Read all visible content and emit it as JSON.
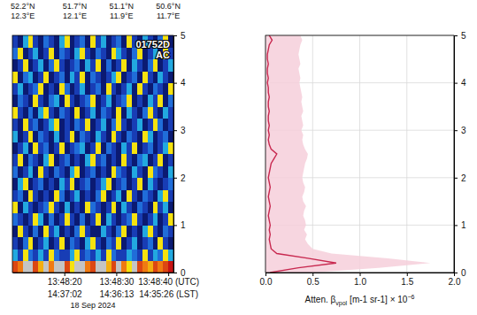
{
  "chart_data": [
    {
      "type": "heatmap",
      "date": "18 Sep 2024",
      "annotations": [
        "01752D",
        "AC"
      ],
      "top_ticks": [
        {
          "value": "13:48:12",
          "label": "52.2°N",
          "label_lon": "12.3°E"
        },
        {
          "value": "13:48:22",
          "label": "51.7°N",
          "label_lon": "12.1°E"
        },
        {
          "value": "13:48:31",
          "label": "51.1°N",
          "label_lon": "11.9°E"
        },
        {
          "value": "13:48:40",
          "label": "50.6°N",
          "label_lon": "11.7°E"
        }
      ],
      "xlim": [
        "13:48:10",
        "13:48:41"
      ],
      "xticks": [
        {
          "value": "13:48:20",
          "label": "13:48:20",
          "label_lst": "14:37:02"
        },
        {
          "value": "13:48:30",
          "label": "13:48:30",
          "label_lst": "14:36:13"
        },
        {
          "value": "13:48:40",
          "label": "13:48:40 (UTC)",
          "label_lst": "14:35:26 (LST)"
        }
      ],
      "ylim": [
        0,
        5
      ],
      "yticks": [
        0,
        1,
        2,
        3,
        4,
        5
      ],
      "x_edges": [
        "13:48:10",
        "13:48:11",
        "13:48:12",
        "13:48:13",
        "13:48:14",
        "13:48:15",
        "13:48:16",
        "13:48:17",
        "13:48:18",
        "13:48:19",
        "13:48:20",
        "13:48:21",
        "13:48:22",
        "13:48:23",
        "13:48:24",
        "13:48:25",
        "13:48:26",
        "13:48:27",
        "13:48:28",
        "13:48:29",
        "13:48:30",
        "13:48:31",
        "13:48:32",
        "13:48:33",
        "13:48:34",
        "13:48:35",
        "13:48:36",
        "13:48:37",
        "13:48:38",
        "13:48:39",
        "13:48:40",
        "13:48:41"
      ],
      "y_edges": [
        0,
        0.25,
        0.5,
        0.75,
        1,
        1.25,
        1.5,
        1.75,
        2,
        2.25,
        2.5,
        2.75,
        3,
        3.25,
        3.5,
        3.75,
        4,
        4.25,
        4.5,
        4.75,
        5
      ],
      "color_range": [
        0,
        1
      ],
      "cells": [
        [
          0.9,
          0.8,
          null,
          null,
          0.9,
          0.7,
          null,
          0.8,
          null,
          null,
          0.9,
          0.6,
          null,
          null,
          0.8,
          0.9,
          null,
          null,
          0.7,
          0.9,
          null,
          0.8,
          0.6,
          null,
          0.9,
          0.8,
          0.7,
          0.9,
          0.8,
          0.9,
          1.0
        ],
        [
          0.3,
          0.1,
          0.6,
          0.2,
          0.1,
          0.3,
          0.1,
          0.6,
          0.2,
          0.1,
          0.1,
          0.3,
          0.6,
          0.1,
          0.2,
          0.1,
          0.3,
          0.1,
          0.6,
          0.2,
          0.1,
          0.1,
          0.3,
          0.2,
          0.1,
          0.6,
          0.1,
          0.3,
          0.2,
          0.6,
          0.3
        ],
        [
          0.1,
          0.0,
          0.2,
          0.6,
          0.0,
          0.1,
          0.3,
          0.0,
          0.1,
          0.6,
          0.0,
          0.2,
          0.1,
          0.0,
          0.3,
          0.6,
          0.1,
          0.0,
          0.2,
          0.1,
          0.6,
          0.0,
          0.1,
          0.3,
          0.0,
          0.1,
          0.2,
          0.0,
          0.6,
          0.1,
          0.0
        ],
        [
          0.0,
          0.6,
          0.1,
          0.0,
          0.2,
          0.0,
          0.6,
          0.1,
          0.3,
          0.0,
          0.1,
          0.0,
          0.2,
          0.6,
          0.1,
          0.0,
          0.0,
          0.3,
          0.1,
          0.0,
          0.2,
          0.6,
          0.0,
          0.1,
          0.0,
          0.3,
          0.6,
          0.1,
          0.0,
          0.2,
          0.1
        ],
        [
          0.2,
          0.1,
          0.0,
          0.1,
          0.6,
          0.3,
          0.0,
          0.2,
          0.0,
          0.1,
          0.6,
          0.1,
          0.0,
          0.2,
          0.0,
          0.1,
          0.6,
          0.0,
          0.3,
          0.1,
          0.0,
          0.1,
          0.2,
          0.6,
          0.1,
          0.0,
          0.1,
          0.3,
          0.0,
          0.1,
          0.6
        ],
        [
          0.6,
          0.0,
          0.3,
          0.1,
          0.0,
          0.1,
          0.2,
          0.6,
          0.1,
          0.0,
          0.3,
          0.0,
          0.1,
          0.0,
          0.6,
          0.2,
          0.1,
          0.0,
          0.1,
          0.6,
          0.0,
          0.3,
          0.1,
          0.0,
          0.2,
          0.1,
          0.0,
          0.6,
          0.1,
          0.3,
          0.0
        ],
        [
          0.1,
          0.2,
          0.0,
          0.6,
          0.1,
          0.0,
          0.1,
          0.0,
          0.6,
          0.2,
          0.0,
          0.1,
          0.3,
          0.0,
          0.1,
          0.0,
          0.2,
          0.6,
          0.0,
          0.1,
          0.3,
          0.0,
          0.6,
          0.1,
          0.0,
          0.2,
          0.1,
          0.0,
          0.3,
          0.6,
          0.1
        ],
        [
          0.0,
          0.3,
          0.6,
          0.0,
          0.1,
          0.2,
          0.0,
          0.1,
          0.0,
          0.3,
          0.1,
          0.6,
          0.0,
          0.1,
          0.2,
          0.0,
          0.1,
          0.3,
          0.6,
          0.0,
          0.1,
          0.2,
          0.0,
          0.1,
          0.6,
          0.0,
          0.3,
          0.1,
          0.0,
          0.1,
          0.2
        ],
        [
          0.2,
          0.0,
          0.1,
          0.3,
          0.0,
          0.6,
          0.1,
          0.0,
          0.2,
          0.1,
          0.0,
          0.3,
          0.6,
          0.0,
          0.1,
          0.2,
          0.0,
          0.1,
          0.0,
          0.6,
          0.2,
          0.1,
          0.0,
          0.3,
          0.1,
          0.0,
          0.6,
          0.2,
          0.1,
          0.0,
          0.3
        ],
        [
          0.1,
          0.6,
          0.0,
          0.2,
          0.1,
          0.0,
          0.3,
          0.6,
          0.0,
          0.1,
          0.2,
          0.0,
          0.1,
          0.0,
          0.3,
          0.6,
          0.1,
          0.2,
          0.0,
          0.1,
          0.0,
          0.6,
          0.1,
          0.0,
          0.2,
          0.3,
          0.0,
          0.1,
          0.6,
          0.0,
          0.1
        ],
        [
          0.0,
          0.1,
          0.3,
          0.0,
          0.6,
          0.1,
          0.2,
          0.0,
          0.1,
          0.6,
          0.0,
          0.1,
          0.2,
          0.3,
          0.0,
          0.1,
          0.6,
          0.0,
          0.2,
          0.1,
          0.0,
          0.3,
          0.1,
          0.6,
          0.0,
          0.1,
          0.2,
          0.0,
          0.1,
          0.3,
          0.6
        ],
        [
          0.3,
          0.0,
          0.1,
          0.6,
          0.0,
          0.2,
          0.1,
          0.0,
          0.3,
          0.0,
          0.1,
          0.6,
          0.0,
          0.2,
          0.1,
          0.0,
          0.3,
          0.1,
          0.0,
          0.6,
          0.1,
          0.0,
          0.2,
          0.1,
          0.0,
          0.6,
          0.3,
          0.0,
          0.1,
          0.2,
          0.0
        ],
        [
          0.1,
          0.0,
          0.6,
          0.1,
          0.2,
          0.0,
          0.1,
          0.3,
          0.6,
          0.0,
          0.1,
          0.0,
          0.2,
          0.1,
          0.6,
          0.0,
          0.1,
          0.3,
          0.0,
          0.2,
          0.6,
          0.1,
          0.0,
          0.1,
          0.3,
          0.0,
          0.1,
          0.6,
          0.2,
          0.0,
          0.1
        ],
        [
          0.6,
          0.1,
          0.0,
          0.2,
          0.0,
          0.3,
          0.6,
          0.1,
          0.0,
          0.2,
          0.1,
          0.0,
          0.6,
          0.0,
          0.1,
          0.3,
          0.0,
          0.2,
          0.1,
          0.0,
          0.6,
          0.0,
          0.3,
          0.1,
          0.0,
          0.2,
          0.6,
          0.1,
          0.0,
          0.3,
          0.1
        ],
        [
          0.0,
          0.2,
          0.1,
          0.0,
          0.6,
          0.1,
          0.0,
          0.2,
          0.3,
          0.0,
          0.6,
          0.1,
          0.0,
          0.1,
          0.2,
          0.6,
          0.0,
          0.1,
          0.3,
          0.0,
          0.1,
          0.2,
          0.6,
          0.0,
          0.1,
          0.0,
          0.3,
          0.1,
          0.6,
          0.0,
          0.2
        ],
        [
          0.1,
          0.3,
          0.0,
          0.1,
          0.2,
          0.6,
          0.0,
          0.1,
          0.0,
          0.6,
          0.2,
          0.0,
          0.1,
          0.3,
          0.0,
          0.1,
          0.2,
          0.0,
          0.6,
          0.1,
          0.0,
          0.1,
          0.3,
          0.0,
          0.6,
          0.1,
          0.0,
          0.2,
          0.1,
          0.0,
          0.6
        ],
        [
          0.6,
          0.0,
          0.2,
          0.3,
          0.0,
          0.1,
          0.6,
          0.0,
          0.1,
          0.2,
          0.0,
          0.3,
          0.1,
          0.6,
          0.0,
          0.2,
          0.1,
          0.0,
          0.1,
          0.3,
          0.6,
          0.0,
          0.1,
          0.2,
          0.0,
          0.6,
          0.1,
          0.0,
          0.3,
          0.1,
          0.0
        ],
        [
          0.0,
          0.1,
          0.6,
          0.0,
          0.1,
          0.3,
          0.0,
          0.2,
          0.6,
          0.1,
          0.0,
          0.1,
          0.2,
          0.0,
          0.3,
          0.1,
          0.6,
          0.0,
          0.2,
          0.0,
          0.1,
          0.6,
          0.0,
          0.3,
          0.1,
          0.0,
          0.2,
          0.6,
          0.0,
          0.1,
          0.3
        ],
        [
          0.2,
          0.6,
          0.0,
          0.1,
          0.3,
          0.0,
          0.1,
          0.6,
          0.0,
          0.2,
          0.1,
          0.0,
          0.3,
          0.6,
          0.1,
          0.0,
          0.2,
          0.1,
          0.0,
          0.6,
          0.3,
          0.1,
          0.0,
          0.2,
          0.6,
          0.0,
          0.1,
          0.3,
          0.0,
          0.6,
          0.1
        ],
        [
          0.1,
          0.0,
          0.3,
          0.6,
          0.1,
          0.0,
          0.2,
          0.1,
          0.0,
          0.3,
          0.6,
          0.0,
          0.1,
          0.2,
          0.0,
          0.6,
          0.1,
          0.3,
          0.0,
          0.1,
          0.2,
          0.0,
          0.6,
          0.1,
          0.0,
          0.3,
          0.1,
          0.0,
          0.2,
          0.6,
          0.0
        ]
      ]
    },
    {
      "type": "line",
      "orientation": "horizontal",
      "grid": true,
      "xlabel": "Atten. β",
      "xlabel_sub": "vpol",
      "xlabel_unit": "[m-1 sr-1] × 10",
      "xlabel_exp": "−6",
      "xlim": [
        0,
        2
      ],
      "xticks": [
        {
          "value": 0,
          "label": "0.0"
        },
        {
          "value": 0.5,
          "label": "0.5"
        },
        {
          "value": 1,
          "label": "1.0"
        },
        {
          "value": 1.5,
          "label": "1.5"
        },
        {
          "value": 2,
          "label": "2.0"
        }
      ],
      "ylim": [
        0,
        5
      ],
      "yticks": [
        0,
        1,
        2,
        3,
        4,
        5
      ],
      "heights": [
        0,
        0.1,
        0.2,
        0.3,
        0.4,
        0.5,
        0.6,
        0.7,
        0.8,
        0.9,
        1,
        1.1,
        1.2,
        1.3,
        1.4,
        1.5,
        1.6,
        1.7,
        1.8,
        1.9,
        2,
        2.1,
        2.2,
        2.3,
        2.4,
        2.5,
        2.6,
        2.7,
        2.8,
        2.9,
        3,
        3.1,
        3.2,
        3.3,
        3.4,
        3.5,
        3.6,
        3.7,
        3.8,
        3.9,
        4,
        4.1,
        4.2,
        4.3,
        4.4,
        4.5,
        4.6,
        4.7,
        4.8,
        4.9,
        5
      ],
      "series": [
        {
          "color": "#c8284f",
          "values": [
            0.05,
            0.35,
            0.75,
            0.45,
            0.12,
            0.06,
            0.05,
            0.04,
            0.05,
            0.04,
            0.05,
            0.04,
            0.03,
            0.04,
            0.05,
            0.04,
            0.03,
            0.04,
            0.05,
            0.04,
            0.03,
            0.04,
            0.05,
            0.06,
            0.09,
            0.12,
            0.06,
            0.04,
            0.03,
            0.04,
            0.03,
            0.04,
            0.03,
            0.03,
            0.04,
            0.03,
            0.03,
            0.04,
            0.03,
            0.03,
            0.02,
            0.03,
            0.02,
            0.02,
            0.03,
            0.02,
            0.02,
            0.03,
            0.04,
            0.07,
            0.04
          ]
        }
      ],
      "band": {
        "color": "#f6cfdb",
        "lower": [
          0,
          0,
          0,
          0,
          0,
          0,
          0,
          0,
          0,
          0,
          0,
          0,
          0,
          0,
          0,
          0,
          0,
          0,
          0,
          0,
          0,
          0,
          0,
          0,
          0,
          0,
          0,
          0,
          0,
          0,
          0,
          0,
          0,
          0,
          0,
          0,
          0,
          0,
          0,
          0,
          0,
          0,
          0,
          0,
          0,
          0,
          0,
          0,
          0,
          0,
          0
        ],
        "upper": [
          0.5,
          1.2,
          1.75,
          1.3,
          0.7,
          0.5,
          0.45,
          0.42,
          0.44,
          0.41,
          0.43,
          0.42,
          0.4,
          0.41,
          0.43,
          0.4,
          0.39,
          0.41,
          0.42,
          0.4,
          0.39,
          0.4,
          0.41,
          0.42,
          0.44,
          0.45,
          0.42,
          0.4,
          0.39,
          0.4,
          0.38,
          0.4,
          0.39,
          0.38,
          0.4,
          0.39,
          0.38,
          0.39,
          0.38,
          0.37,
          0.36,
          0.37,
          0.36,
          0.35,
          0.37,
          0.36,
          0.35,
          0.36,
          0.37,
          0.39,
          0.37
        ]
      }
    }
  ]
}
